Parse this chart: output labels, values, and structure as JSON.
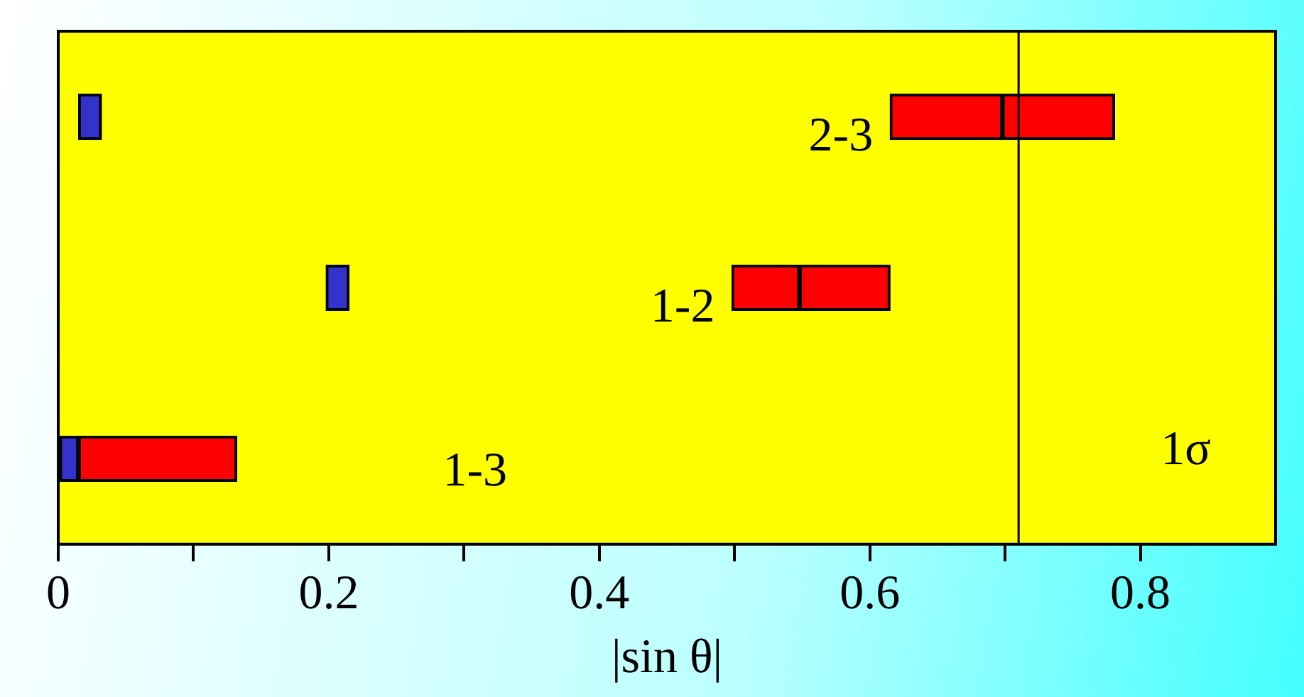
{
  "chart_data": {
    "type": "bar",
    "orientation": "horizontal",
    "xlabel": "|sin θ|",
    "categories": [
      "2-3",
      "1-2",
      "1-3"
    ],
    "series": [
      {
        "color": "#3333cc",
        "base": [
          0.015,
          0.198,
          0.0
        ],
        "values": [
          0.017,
          0.017,
          0.015
        ]
      },
      {
        "color": "#ff0000",
        "base": [
          0.615,
          0.498,
          0.015
        ],
        "values": [
          0.083,
          0.05,
          0.117
        ]
      },
      {
        "color": "#ff0000",
        "base": [
          0.698,
          0.548,
          null
        ],
        "values": [
          0.083,
          0.067,
          null
        ]
      }
    ],
    "xlim": [
      0,
      0.9
    ],
    "xticks": [
      0,
      {
        "value": 0.1,
        "label": null
      },
      0.2,
      {
        "value": 0.3,
        "label": null
      },
      0.4,
      {
        "value": 0.5,
        "label": null
      },
      0.6,
      {
        "value": 0.7,
        "label": null
      },
      0.8
    ],
    "ref_lines": [
      {
        "axis": "x",
        "value": 0.71,
        "label": "1σ",
        "color": "#000000"
      }
    ],
    "grid": false,
    "legend": false
  }
}
